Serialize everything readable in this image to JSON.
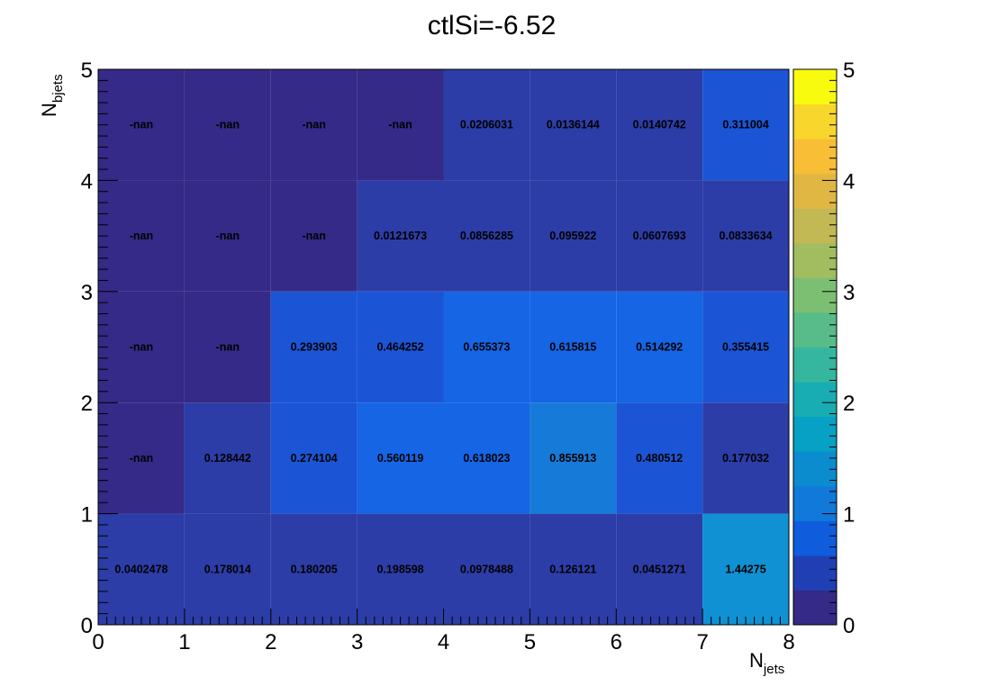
{
  "chart_data": {
    "type": "heatmap",
    "title": "ctlSi=-6.52",
    "xlabel": {
      "main": "N",
      "sub": "jets"
    },
    "ylabel": {
      "main": "N",
      "sub": "bjets"
    },
    "xlim": [
      0,
      8
    ],
    "ylim": [
      0,
      5
    ],
    "zlim": [
      0,
      5
    ],
    "x_ticks": [
      "0",
      "1",
      "2",
      "3",
      "4",
      "5",
      "6",
      "7",
      "8"
    ],
    "y_ticks": [
      "0",
      "1",
      "2",
      "3",
      "4",
      "5"
    ],
    "z_ticks": [
      "0",
      "1",
      "2",
      "3",
      "4",
      "5"
    ],
    "colorbar_colors": [
      "#352a87",
      "#203fb4",
      "#0f5cdd",
      "#1079da",
      "#0a8ccf",
      "#06a1c4",
      "#17adb2",
      "#35b69f",
      "#57bc89",
      "#7dbf72",
      "#a1bd5f",
      "#c3b954",
      "#e1b744",
      "#f7be36",
      "#f8d62b",
      "#f9fb0e"
    ],
    "rows": [
      {
        "y": 0,
        "cells": [
          "0.0402478",
          "0.178014",
          "0.180205",
          "0.198598",
          "0.0978488",
          "0.126121",
          "0.0451271",
          "1.44275"
        ],
        "colors": [
          "#2d3da7",
          "#2d3da7",
          "#2d3da7",
          "#2d3da7",
          "#2d3da7",
          "#2d3da7",
          "#2d3da7",
          "#0f91d3"
        ]
      },
      {
        "y": 1,
        "cells": [
          "-nan",
          "0.128442",
          "0.274104",
          "0.560119",
          "0.618023",
          "0.855913",
          "0.480512",
          "0.177032"
        ],
        "colors": [
          "#352a87",
          "#2d3da7",
          "#1b55d6",
          "#1565e5",
          "#1565e5",
          "#167ad8",
          "#1b55d6",
          "#2d3da7"
        ]
      },
      {
        "y": 2,
        "cells": [
          "-nan",
          "-nan",
          "0.293903",
          "0.464252",
          "0.655373",
          "0.615815",
          "0.514292",
          "0.355415"
        ],
        "colors": [
          "#352a87",
          "#352a87",
          "#1b55d6",
          "#1b55d6",
          "#1565e5",
          "#1565e5",
          "#1565e5",
          "#1b55d6"
        ]
      },
      {
        "y": 3,
        "cells": [
          "-nan",
          "-nan",
          "-nan",
          "0.0121673",
          "0.0856285",
          "0.095922",
          "0.0607693",
          "0.0833634"
        ],
        "colors": [
          "#352a87",
          "#352a87",
          "#352a87",
          "#2d3da7",
          "#2d3da7",
          "#2d3da7",
          "#2d3da7",
          "#2d3da7"
        ]
      },
      {
        "y": 4,
        "cells": [
          "-nan",
          "-nan",
          "-nan",
          "-nan",
          "0.0206031",
          "0.0136144",
          "0.0140742",
          "0.311004"
        ],
        "colors": [
          "#352a87",
          "#352a87",
          "#352a87",
          "#352a87",
          "#2d3da7",
          "#2d3da7",
          "#2d3da7",
          "#1b55d6"
        ]
      }
    ]
  }
}
